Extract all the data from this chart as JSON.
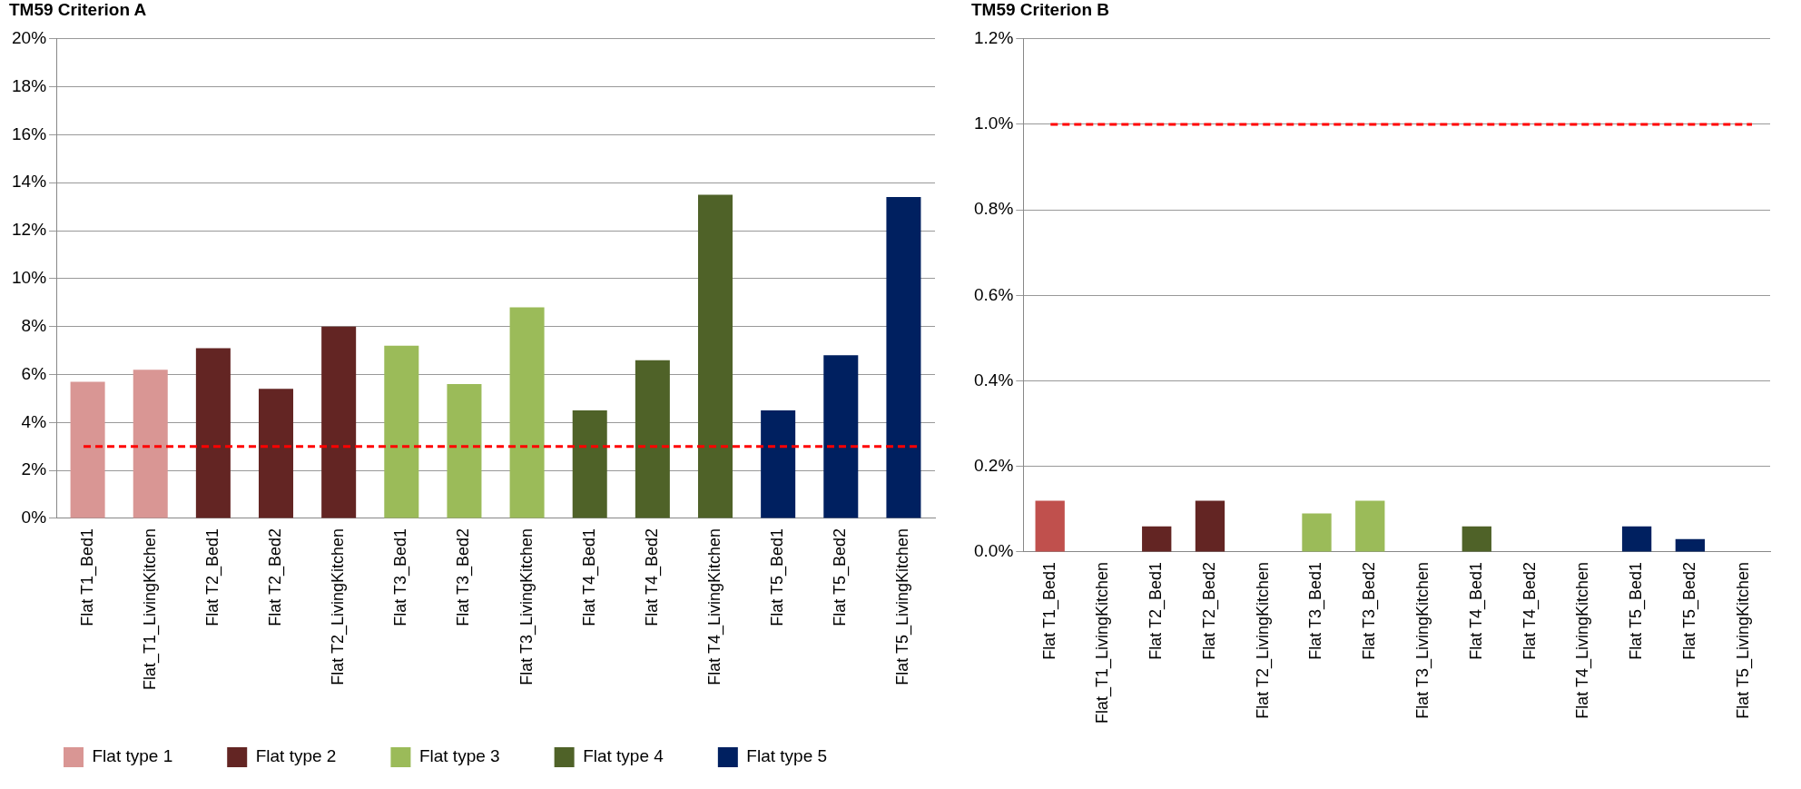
{
  "chart_data": [
    {
      "type": "bar",
      "title": "TM59 Criterion A",
      "stacked": true,
      "grid": "y",
      "legend": "bottom",
      "categories": [
        "Flat T1_Bed1",
        "Flat_T1_LivingKitchen",
        "Flat T2_Bed1",
        "Flat T2_Bed2",
        "Flat T2_LivingKitchen",
        "Flat T3_Bed1",
        "Flat T3_Bed2",
        "Flat T3_LivingKitchen",
        "Flat T4_Bed1",
        "Flat T4_Bed2",
        "Flat T4_LivingKitchen",
        "Flat T5_Bed1",
        "Flat T5_Bed2",
        "Flat T5_LivingKitchen"
      ],
      "ylim": [
        0,
        20
      ],
      "yticks": [
        {
          "value": 0,
          "label": "0%"
        },
        {
          "value": 2,
          "label": "2%"
        },
        {
          "value": 4,
          "label": "4%"
        },
        {
          "value": 6,
          "label": "6%"
        },
        {
          "value": 8,
          "label": "8%"
        },
        {
          "value": 10,
          "label": "10%"
        },
        {
          "value": 12,
          "label": "12%"
        },
        {
          "value": 14,
          "label": "14%"
        },
        {
          "value": 16,
          "label": "16%"
        },
        {
          "value": 18,
          "label": "18%"
        },
        {
          "value": 20,
          "label": "20%"
        }
      ],
      "series": [
        {
          "name": "Flat type 1",
          "color": "#d99694",
          "values": [
            5.7,
            6.2,
            null,
            null,
            null,
            null,
            null,
            null,
            null,
            null,
            null,
            null,
            null,
            null
          ]
        },
        {
          "name": "Flat type 2",
          "color": "#632523",
          "values": [
            null,
            null,
            7.1,
            5.4,
            8.0,
            null,
            null,
            null,
            null,
            null,
            null,
            null,
            null,
            null
          ]
        },
        {
          "name": "Flat type 3",
          "color": "#9bbb59",
          "values": [
            null,
            null,
            null,
            null,
            null,
            7.2,
            5.6,
            8.8,
            null,
            null,
            null,
            null,
            null,
            null
          ]
        },
        {
          "name": "Flat type 4",
          "color": "#4f6228",
          "values": [
            null,
            null,
            null,
            null,
            null,
            null,
            null,
            null,
            4.5,
            6.6,
            13.5,
            null,
            null,
            null
          ]
        },
        {
          "name": "Flat type 5",
          "color": "#002060",
          "values": [
            null,
            null,
            null,
            null,
            null,
            null,
            null,
            null,
            null,
            null,
            null,
            4.5,
            6.8,
            13.4
          ]
        }
      ],
      "ref_lines": [
        {
          "axis": "y",
          "value": 3,
          "color": "#ff0000",
          "line_style": "dashed"
        }
      ]
    },
    {
      "type": "bar",
      "title": "TM59 Criterion B",
      "stacked": true,
      "grid": "y",
      "categories": [
        "Flat T1_Bed1",
        "Flat_T1_LivingKitchen",
        "Flat T2_Bed1",
        "Flat T2_Bed2",
        "Flat T2_LivingKitchen",
        "Flat T3_Bed1",
        "Flat T3_Bed2",
        "Flat T3_LivingKitchen",
        "Flat T4_Bed1",
        "Flat T4_Bed2",
        "Flat T4_LivingKitchen",
        "Flat T5_Bed1",
        "Flat T5_Bed2",
        "Flat T5_LivingKitchen"
      ],
      "ylim": [
        0,
        1.2
      ],
      "yticks": [
        {
          "value": 0,
          "label": "0.0%"
        },
        {
          "value": 0.2,
          "label": "0.2%"
        },
        {
          "value": 0.4,
          "label": "0.4%"
        },
        {
          "value": 0.6,
          "label": "0.6%"
        },
        {
          "value": 0.8,
          "label": "0.8%"
        },
        {
          "value": 1.0,
          "label": "1.0%"
        },
        {
          "value": 1.2,
          "label": "1.2%"
        }
      ],
      "series": [
        {
          "color": "#c0504d",
          "values": [
            0.12,
            0,
            null,
            null,
            null,
            null,
            null,
            null,
            null,
            null,
            null,
            null,
            null,
            null
          ]
        },
        {
          "color": "#632523",
          "values": [
            null,
            null,
            0.06,
            0.12,
            0,
            null,
            null,
            null,
            null,
            null,
            null,
            null,
            null,
            null
          ]
        },
        {
          "color": "#9bbb59",
          "values": [
            null,
            null,
            null,
            null,
            null,
            0.09,
            0.12,
            0,
            null,
            null,
            null,
            null,
            null,
            null
          ]
        },
        {
          "color": "#4f6228",
          "values": [
            null,
            null,
            null,
            null,
            null,
            null,
            null,
            null,
            0.06,
            0,
            0,
            null,
            null,
            null
          ]
        },
        {
          "color": "#002060",
          "values": [
            null,
            null,
            null,
            null,
            null,
            null,
            null,
            null,
            null,
            null,
            null,
            0.06,
            0.03,
            0
          ]
        }
      ],
      "ref_lines": [
        {
          "axis": "y",
          "value": 1.0,
          "color": "#ff0000",
          "line_style": "dashed"
        }
      ]
    }
  ]
}
